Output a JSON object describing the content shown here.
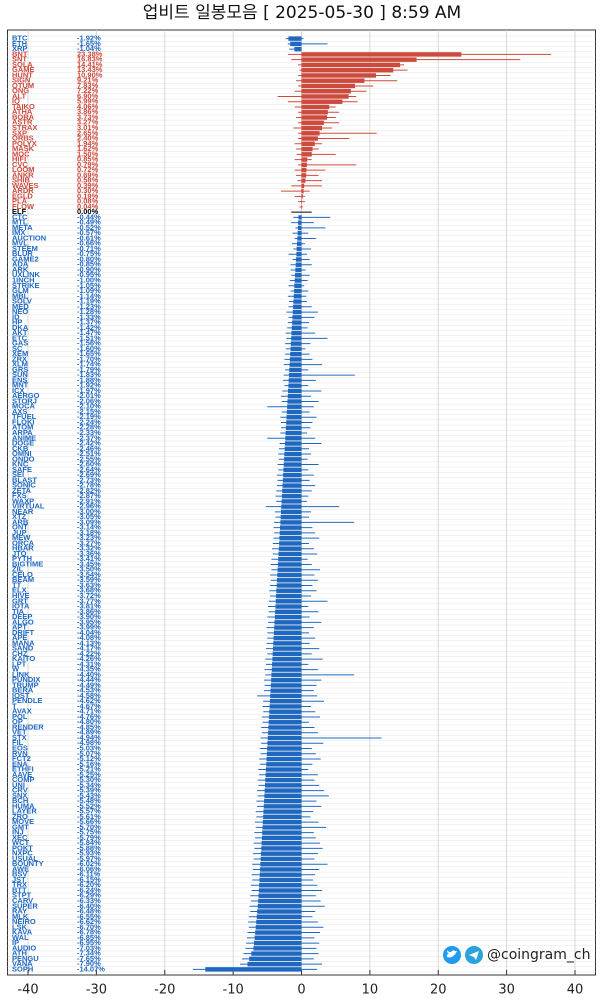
{
  "chart_data": {
    "type": "bar",
    "orientation": "horizontal",
    "title": "업비트 일봉모음 [ 2025-05-30 ]  8:59 AM",
    "categories": [
      "BTC",
      "ETH",
      "XRP",
      "BNT",
      "SNT",
      "SOLA",
      "GAME",
      "HUNT",
      "SIGN",
      "QTUM",
      "ONG",
      "ALT",
      "IQ",
      "TAIKO",
      "ATHA",
      "BORA",
      "ASTR",
      "STRAX",
      "SXP",
      "ORBS",
      "POLYX",
      "MASK",
      "MOC",
      "HIFI",
      "CVC",
      "LOOM",
      "ANKR",
      "SHIB",
      "WAVES",
      "ARDR",
      "EGLD",
      "PLA",
      "FLOW",
      "ELF",
      "CTC",
      "MTL",
      "META",
      "IMX",
      "AUCTION",
      "MVL",
      "STEEM",
      "BLUR",
      "GAME2",
      "ADA",
      "ARK",
      "UXLINK",
      "1INCH",
      "STRIKE",
      "GLM",
      "MBL",
      "SOLV",
      "MED",
      "NEO",
      "ID",
      "HP",
      "DKA",
      "AKT",
      "ETC",
      "GAS",
      "SC",
      "XEM",
      "ZRX",
      "XLM",
      "GRS",
      "SUN",
      "ENS",
      "MNT",
      "ICX",
      "AERGO",
      "STORJ",
      "MOCA",
      "AXS",
      "TFUEL",
      "FLOKI",
      "ATOM",
      "ARPA",
      "ANIME",
      "DOGE",
      "CKB",
      "OMNI",
      "ONDO",
      "KNC",
      "SAFE",
      "SEI",
      "BLAST",
      "SONIC",
      "ZETA",
      "FXS",
      "WAXP",
      "VIRTUAL",
      "NEAR",
      "XTZ",
      "ARB",
      "ONT",
      "JUP",
      "MEW",
      "ORCA",
      "HBAR",
      "JTO",
      "PYTH",
      "BIGTIME",
      "ZIL",
      "CELO",
      "BEAM",
      "TT",
      "ELX",
      "HIVE",
      "GRT",
      "IOTA",
      "TIA",
      "DEEP",
      "ALGO",
      "APT",
      "DRIFT",
      "APE",
      "MANA",
      "SAND",
      "CHZ",
      "KAITO",
      "LPT",
      "W",
      "LINK",
      "PUNDIX",
      "TRUMP",
      "BERA",
      "IOST",
      "PENDLE",
      "T",
      "AVAX",
      "POL",
      "OP",
      "RENDER",
      "VET",
      "STX",
      "FIL",
      "EOS",
      "RVN",
      "FCT2",
      "ENA",
      "ETHFI",
      "AAVE",
      "COMP",
      "UNI",
      "CRV",
      "SNX",
      "BCH",
      "HUMA",
      "LAYER",
      "ZRO",
      "MOVE",
      "GMT",
      "INJ",
      "XEC",
      "WCT",
      "POKT",
      "NXPC",
      "USUAL",
      "BOUNTY",
      "AWE",
      "BSV",
      "JST",
      "TRX",
      "BTT",
      "STPT",
      "CARV",
      "SUPER",
      "RAY",
      "MLK",
      "NEIRO",
      "LSK",
      "KAVA",
      "WAL",
      "IP",
      "AUDIO",
      "ATH",
      "PENGU",
      "VANA",
      "SOPH"
    ],
    "values": [
      -1.92,
      -1.65,
      -1.04,
      23.38,
      16.83,
      14.41,
      13.43,
      10.9,
      9.21,
      7.83,
      7.22,
      6.9,
      5.99,
      4.06,
      3.86,
      3.73,
      3.27,
      3.01,
      2.65,
      2.4,
      1.94,
      1.62,
      1.5,
      0.85,
      0.79,
      0.72,
      0.69,
      0.58,
      0.39,
      0.3,
      0.19,
      0.08,
      0.04,
      0,
      -0.44,
      -0.49,
      -0.52,
      -0.57,
      -0.61,
      -0.66,
      -0.71,
      -0.75,
      -0.8,
      -0.85,
      -0.9,
      -0.95,
      -1,
      -1.05,
      -1.09,
      -1.14,
      -1.19,
      -1.23,
      -1.28,
      -1.33,
      -1.37,
      -1.42,
      -1.47,
      -1.51,
      -1.56,
      -1.6,
      -1.65,
      -1.7,
      -1.74,
      -1.79,
      -1.83,
      -1.88,
      -1.92,
      -1.97,
      -2.01,
      -2.06,
      -2.1,
      -2.15,
      -2.19,
      -2.24,
      -2.28,
      -2.33,
      -2.37,
      -2.42,
      -2.46,
      -2.51,
      -2.55,
      -2.6,
      -2.64,
      -2.69,
      -2.73,
      -2.78,
      -2.82,
      -2.87,
      -2.91,
      -2.96,
      -3,
      -3.05,
      -3.09,
      -3.14,
      -3.18,
      -3.23,
      -3.27,
      -3.32,
      -3.36,
      -3.41,
      -3.45,
      -3.5,
      -3.54,
      -3.59,
      -3.63,
      -3.68,
      -3.72,
      -3.77,
      -3.81,
      -3.86,
      -3.9,
      -3.95,
      -3.99,
      -4.04,
      -4.08,
      -4.13,
      -4.17,
      -4.22,
      -4.26,
      -4.31,
      -4.35,
      -4.4,
      -4.44,
      -4.49,
      -4.53,
      -4.58,
      -4.62,
      -4.67,
      -4.71,
      -4.76,
      -4.8,
      -4.85,
      -4.89,
      -4.94,
      -4.98,
      -5.03,
      -5.07,
      -5.12,
      -5.16,
      -5.21,
      -5.25,
      -5.3,
      -5.34,
      -5.39,
      -5.43,
      -5.48,
      -5.52,
      -5.57,
      -5.61,
      -5.66,
      -5.7,
      -5.75,
      -5.79,
      -5.84,
      -5.88,
      -5.93,
      -5.97,
      -6.02,
      -6.06,
      -6.11,
      -6.15,
      -6.2,
      -6.24,
      -6.29,
      -6.33,
      -6.4,
      -6.48,
      -6.55,
      -6.62,
      -6.7,
      -6.78,
      -6.85,
      -6.95,
      -7.03,
      -7.34,
      -7.65,
      -7.9,
      -14.07
    ],
    "value_labels": [
      "-1.92%",
      "-1.65%",
      "-1.04%",
      "23.38%",
      "16.83%",
      "14.41%",
      "13.43%",
      "10.90%",
      "9.21%",
      "7.83%",
      "7.22%",
      "6.90%",
      "5.99%",
      "4.06%",
      "3.86%",
      "3.73%",
      "3.27%",
      "3.01%",
      "2.65%",
      "2.40%",
      "1.94%",
      "1.62%",
      "1.50%",
      "0.85%",
      "0.79%",
      "0.72%",
      "0.69%",
      "0.58%",
      "0.39%",
      "0.30%",
      "0.19%",
      "0.08%",
      "0.04%",
      "0.00%",
      "-0.44%",
      "-0.49%",
      "-0.52%",
      "-0.57%",
      "-0.61%",
      "-0.66%",
      "-0.71%",
      "-0.75%",
      "-0.80%",
      "-0.85%",
      "-0.90%",
      "-0.95%",
      "-1.00%",
      "-1.05%",
      "-1.09%",
      "-1.14%",
      "-1.19%",
      "-1.23%",
      "-1.28%",
      "-1.33%",
      "-1.37%",
      "-1.42%",
      "-1.47%",
      "-1.51%",
      "-1.56%",
      "-1.60%",
      "-1.65%",
      "-1.70%",
      "-1.74%",
      "-1.79%",
      "-1.83%",
      "-1.88%",
      "-1.92%",
      "-1.97%",
      "-2.01%",
      "-2.06%",
      "-2.10%",
      "-2.15%",
      "-2.19%",
      "-2.24%",
      "-2.28%",
      "-2.33%",
      "-2.37%",
      "-2.42%",
      "-2.46%",
      "-2.51%",
      "-2.55%",
      "-2.60%",
      "-2.64%",
      "-2.69%",
      "-2.73%",
      "-2.78%",
      "-2.82%",
      "-2.87%",
      "-2.91%",
      "-2.96%",
      "-3.00%",
      "-3.05%",
      "-3.09%",
      "-3.14%",
      "-3.18%",
      "-3.23%",
      "-3.27%",
      "-3.32%",
      "-3.36%",
      "-3.41%",
      "-3.45%",
      "-3.50%",
      "-3.54%",
      "-3.59%",
      "-3.63%",
      "-3.68%",
      "-3.72%",
      "-3.77%",
      "-3.81%",
      "-3.86%",
      "-3.90%",
      "-3.95%",
      "-3.99%",
      "-4.04%",
      "-4.08%",
      "-4.13%",
      "-4.17%",
      "-4.22%",
      "-4.26%",
      "-4.31%",
      "-4.35%",
      "-4.40%",
      "-4.44%",
      "-4.49%",
      "-4.53%",
      "-4.58%",
      "-4.62%",
      "-4.67%",
      "-4.71%",
      "-4.76%",
      "-4.80%",
      "-4.85%",
      "-4.89%",
      "-4.94%",
      "-4.98%",
      "-5.03%",
      "-5.07%",
      "-5.12%",
      "-5.16%",
      "-5.21%",
      "-5.25%",
      "-5.30%",
      "-5.34%",
      "-5.39%",
      "-5.43%",
      "-5.48%",
      "-5.52%",
      "-5.57%",
      "-5.61%",
      "-5.66%",
      "-5.70%",
      "-5.75%",
      "-5.79%",
      "-5.84%",
      "-5.88%",
      "-5.93%",
      "-5.97%",
      "-6.02%",
      "-6.06%",
      "-6.11%",
      "-6.15%",
      "-6.20%",
      "-6.24%",
      "-6.29%",
      "-6.33%",
      "-6.40%",
      "-6.48%",
      "-6.55%",
      "-6.62%",
      "-6.70%",
      "-6.78%",
      "-6.85%",
      "-6.95%",
      "-7.03%",
      "-7.34%",
      "-7.65%",
      "-7.90%",
      "-14.07%"
    ],
    "low": [
      -2.3,
      -2,
      -1.8,
      -2,
      -1.5,
      -0.5,
      -0.3,
      -0.5,
      -0.8,
      -0.5,
      -1,
      -3.5,
      -2,
      -1,
      -0.5,
      -0.8,
      -0.5,
      -1.2,
      -0.5,
      -0.5,
      -1,
      -0.8,
      -0.7,
      -1,
      -0.5,
      -1,
      -0.8,
      -0.6,
      -1.5,
      -3,
      -1,
      -0.5,
      -0.3,
      -1.5,
      -1.2,
      -1.5,
      -0.9,
      -1.3,
      -1,
      -1.4,
      -1.2,
      -1.9,
      -1.3,
      -1.6,
      -1.6,
      -1.5,
      -1.7,
      -1.9,
      -1.6,
      -2,
      -1.8,
      -1.9,
      -2.2,
      -1.9,
      -2,
      -2.1,
      -2.3,
      -2.2,
      -2.4,
      -2.3,
      -2.4,
      -2.5,
      -2.6,
      -2.4,
      -2.6,
      -2.7,
      -2.5,
      -2.8,
      -3,
      -2.9,
      -5,
      -2.9,
      -3.1,
      -3,
      -3,
      -3.1,
      -5,
      -3.2,
      -3.3,
      -3.4,
      -3.3,
      -3.5,
      -3.4,
      -3.6,
      -3.5,
      -3.6,
      -3.7,
      -3.8,
      -3.7,
      -5.2,
      -3.9,
      -3.8,
      -4,
      -4.1,
      -4,
      -4.1,
      -4.2,
      -4.3,
      -4.2,
      -4.4,
      -4.5,
      -4.4,
      -4.6,
      -4.5,
      -4.6,
      -4.7,
      -4.6,
      -4.8,
      -4.9,
      -4.8,
      -5,
      -4.9,
      -5.1,
      -5,
      -5,
      -5.1,
      -5.2,
      -5,
      -5.3,
      -5.2,
      -5.4,
      -5.3,
      -5.5,
      -5.4,
      -5.5,
      -6.5,
      -5.6,
      -5.7,
      -5.6,
      -5.8,
      -5.7,
      -5.9,
      -5.8,
      -6,
      -5.9,
      -6.1,
      -6,
      -6.2,
      -6.1,
      -6.3,
      -6.2,
      -6.4,
      -6.3,
      -6.5,
      -6.4,
      -6.6,
      -6.5,
      -6.7,
      -6.6,
      -6.8,
      -6.7,
      -6.9,
      -6.8,
      -7,
      -6.9,
      -7.1,
      -7,
      -7.2,
      -7.1,
      -7.3,
      -7.2,
      -7.4,
      -7.3,
      -7.5,
      -7.4,
      -7.6,
      -7.5,
      -7.7,
      -7.8,
      -7.7,
      -7.9,
      -8,
      -8.1,
      -8.2,
      -8.5,
      -8.7,
      -9,
      -15.9
    ],
    "high": [
      0.3,
      3.8,
      -0.2,
      36.5,
      32,
      15,
      15.5,
      13,
      14,
      10.5,
      9.5,
      8,
      8.2,
      5,
      5.5,
      5,
      5.5,
      4.5,
      11,
      7,
      3,
      2.5,
      5,
      1.5,
      8,
      3.5,
      2.5,
      3,
      3,
      1.2,
      0.5,
      0.5,
      0.2,
      1.5,
      4.2,
      1.8,
      3.5,
      1,
      2.1,
      0.5,
      1.4,
      0.8,
      1.2,
      1.5,
      0.6,
      1.2,
      0.9,
      0.4,
      1,
      0.7,
      0.8,
      1.5,
      2.4,
      1.9,
      1.1,
      0.9,
      2,
      3.8,
      1.3,
      0.6,
      1.2,
      1.6,
      3,
      1,
      7.8,
      2.1,
      1,
      2.9,
      1.4,
      2.5,
      1.8,
      1.2,
      2.2,
      1.6,
      1.3,
      0.8,
      2,
      2.9,
      1.1,
      1.4,
      0.9,
      2.5,
      1,
      1.8,
      1.2,
      2,
      1.5,
      1,
      0.8,
      5.5,
      1.4,
      1.1,
      7.7,
      1.6,
      2,
      2.6,
      1.1,
      1.8,
      2.3,
      0.9,
      1.5,
      2.7,
      1.9,
      2.4,
      1.6,
      2.2,
      1.4,
      3.8,
      1,
      2.5,
      1.2,
      2.9,
      1.8,
      1.1,
      2,
      1.2,
      2.6,
      1.5,
      3.1,
      1,
      2.4,
      7.7,
      2.9,
      2.2,
      1.8,
      2.3,
      3.3,
      1.4,
      2,
      2.7,
      1.1,
      1.9,
      2.4,
      11.7,
      3.2,
      1.5,
      2.1,
      2.8,
      1.6,
      1,
      2.4,
      1.9,
      2.6,
      3.3,
      4,
      2.2,
      2.9,
      1.7,
      1.3,
      2.5,
      3.6,
      1.8,
      2.1,
      2.7,
      3.1,
      2.4,
      1.9,
      3.8,
      2.6,
      2,
      1.7,
      2.3,
      3,
      2.1,
      2.8,
      3.4,
      2,
      1.6,
      2.4,
      3.2,
      2.7,
      1.9,
      2.6,
      2.2,
      2.5,
      1.8,
      3,
      2.3
    ],
    "xlim": [
      -43,
      43
    ],
    "xticks": [
      -40,
      -30,
      -20,
      -10,
      0,
      10,
      20,
      30,
      40
    ],
    "grid": true,
    "colors": {
      "up": "#cd4a3d",
      "down": "#1f68c1",
      "flat": "#000000"
    }
  },
  "watermark": "@coingram_ch"
}
